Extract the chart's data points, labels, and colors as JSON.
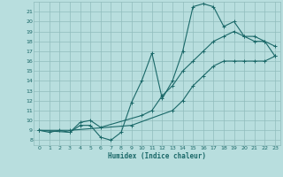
{
  "title": "",
  "xlabel": "Humidex (Indice chaleur)",
  "bg_color": "#b8dede",
  "grid_color": "#90bcbc",
  "line_color": "#1a6868",
  "xlim": [
    -0.5,
    23.5
  ],
  "ylim": [
    7.5,
    22.0
  ],
  "xticks": [
    0,
    1,
    2,
    3,
    4,
    5,
    6,
    7,
    8,
    9,
    10,
    11,
    12,
    13,
    14,
    15,
    16,
    17,
    18,
    19,
    20,
    21,
    22,
    23
  ],
  "yticks": [
    8,
    9,
    10,
    11,
    12,
    13,
    14,
    15,
    16,
    17,
    18,
    19,
    20,
    21
  ],
  "line1_x": [
    0,
    1,
    2,
    3,
    4,
    5,
    6,
    7,
    8,
    9,
    10,
    11,
    12,
    13,
    14,
    15,
    16,
    17,
    18,
    19,
    20,
    21,
    22,
    23
  ],
  "line1_y": [
    9.0,
    8.8,
    9.0,
    8.8,
    9.5,
    9.5,
    8.3,
    8.0,
    8.8,
    11.8,
    14.0,
    16.8,
    12.2,
    14.0,
    17.0,
    21.5,
    21.8,
    21.5,
    19.5,
    20.0,
    18.5,
    18.0,
    18.0,
    17.5
  ],
  "line2_x": [
    0,
    3,
    4,
    5,
    6,
    10,
    11,
    12,
    13,
    14,
    15,
    16,
    17,
    18,
    19,
    20,
    21,
    22,
    23
  ],
  "line2_y": [
    9.0,
    8.8,
    9.8,
    10.0,
    9.3,
    10.5,
    11.0,
    12.5,
    13.5,
    15.0,
    16.0,
    17.0,
    18.0,
    18.5,
    19.0,
    18.5,
    18.5,
    18.0,
    16.5
  ],
  "line3_x": [
    0,
    3,
    9,
    13,
    14,
    15,
    16,
    17,
    18,
    19,
    20,
    21,
    22,
    23
  ],
  "line3_y": [
    9.0,
    9.0,
    9.5,
    11.0,
    12.0,
    13.5,
    14.5,
    15.5,
    16.0,
    16.0,
    16.0,
    16.0,
    16.0,
    16.5
  ]
}
